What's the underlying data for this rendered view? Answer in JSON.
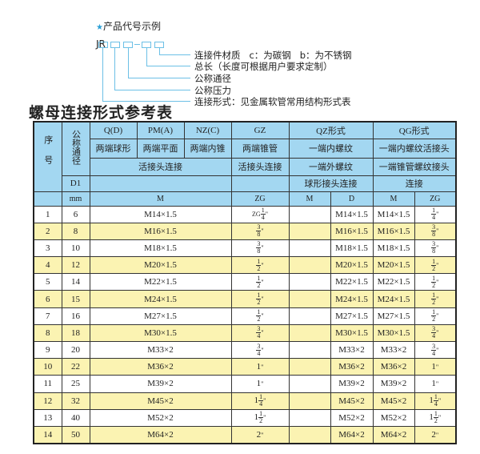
{
  "example": {
    "star_icon": "star-icon",
    "title": "产品代号示例",
    "prefix": "JR",
    "separator": "-",
    "labels": [
      "连接件材质   c：为碳钢   b：为不锈钢",
      "总长（长度可根据用户要求定制）",
      "公称通径",
      "公称压力",
      "连接形式：见金属软管常用结构形式表"
    ]
  },
  "table_title": "螺母连接形式参考表",
  "colors": {
    "header_bg": "#a3d7f1",
    "stripe_bg": "#fbf3b2",
    "accent": "#6cc0e6"
  },
  "header": {
    "seq": "序号",
    "dn": "公称通径",
    "qd": "Q(D)",
    "pm": "PM(A)",
    "nz": "NZ(C)",
    "gz": "GZ",
    "qz": "QZ形式",
    "qg": "QG形式",
    "qd_desc": "两端球形",
    "pm_desc": "两端平面",
    "nz_desc": "两端内锥",
    "gz_desc": "两端锥管",
    "qz_desc": "一端内螺纹",
    "qg_desc": "一端内螺纹活接头",
    "union": "活接头连接",
    "gz_union": "活接头连接",
    "qz_desc2": "一端外螺纹",
    "qg_desc2": "一端锥管螺纹接头",
    "d1": "D1",
    "qz_desc3": "球形接头连接",
    "qg_desc3": "连接",
    "mm": "mm",
    "m": "M",
    "zg": "ZG",
    "qz_m": "M",
    "qz_d": "D",
    "qg_m": "M",
    "qg_zg": "ZG"
  },
  "rows": [
    {
      "no": "1",
      "dn": "6",
      "m": "M14×1.5",
      "zg": {
        "pre": "ZG",
        "whole": "",
        "num": "1",
        "den": "4"
      },
      "qz_d": "M14×1.5",
      "qg_m": "M14×1.5",
      "qg_zg": {
        "whole": "",
        "num": "1",
        "den": "4"
      }
    },
    {
      "no": "2",
      "dn": "8",
      "m": "M16×1.5",
      "zg": {
        "whole": "",
        "num": "3",
        "den": "8"
      },
      "qz_d": "M16×1.5",
      "qg_m": "M16×1.5",
      "qg_zg": {
        "whole": "",
        "num": "3",
        "den": "8"
      }
    },
    {
      "no": "3",
      "dn": "10",
      "m": "M18×1.5",
      "zg": {
        "whole": "",
        "num": "3",
        "den": "8"
      },
      "qz_d": "M18×1.5",
      "qg_m": "M18×1.5",
      "qg_zg": {
        "whole": "",
        "num": "3",
        "den": "8"
      }
    },
    {
      "no": "4",
      "dn": "12",
      "m": "M20×1.5",
      "zg": {
        "whole": "",
        "num": "1",
        "den": "2"
      },
      "qz_d": "M20×1.5",
      "qg_m": "M20×1.5",
      "qg_zg": {
        "whole": "",
        "num": "1",
        "den": "2"
      }
    },
    {
      "no": "5",
      "dn": "14",
      "m": "M22×1.5",
      "zg": {
        "whole": "",
        "num": "1",
        "den": "2"
      },
      "qz_d": "M22×1.5",
      "qg_m": "M22×1.5",
      "qg_zg": {
        "whole": "",
        "num": "1",
        "den": "2"
      }
    },
    {
      "no": "6",
      "dn": "15",
      "m": "M24×1.5",
      "zg": {
        "whole": "",
        "num": "1",
        "den": "2"
      },
      "qz_d": "M24×1.5",
      "qg_m": "M24×1.5",
      "qg_zg": {
        "whole": "",
        "num": "1",
        "den": "2"
      }
    },
    {
      "no": "7",
      "dn": "16",
      "m": "M27×1.5",
      "zg": {
        "whole": "",
        "num": "1",
        "den": "2"
      },
      "qz_d": "M27×1.5",
      "qg_m": "M27×1.5",
      "qg_zg": {
        "whole": "",
        "num": "1",
        "den": "2"
      }
    },
    {
      "no": "8",
      "dn": "18",
      "m": "M30×1.5",
      "zg": {
        "whole": "",
        "num": "3",
        "den": "4"
      },
      "qz_d": "M30×1.5",
      "qg_m": "M30×1.5",
      "qg_zg": {
        "whole": "",
        "num": "3",
        "den": "4"
      }
    },
    {
      "no": "9",
      "dn": "20",
      "m": "M33×2",
      "zg": {
        "whole": "",
        "num": "3",
        "den": "4"
      },
      "qz_d": "M33×2",
      "qg_m": "M33×2",
      "qg_zg": {
        "whole": "",
        "num": "3",
        "den": "4"
      }
    },
    {
      "no": "10",
      "dn": "22",
      "m": "M36×2",
      "zg": {
        "whole": "1",
        "num": "",
        "den": ""
      },
      "qz_d": "M36×2",
      "qg_m": "M36×2",
      "qg_zg": {
        "whole": "1",
        "num": "",
        "den": ""
      }
    },
    {
      "no": "11",
      "dn": "25",
      "m": "M39×2",
      "zg": {
        "whole": "1",
        "num": "",
        "den": ""
      },
      "qz_d": "M39×2",
      "qg_m": "M39×2",
      "qg_zg": {
        "whole": "1",
        "num": "",
        "den": ""
      }
    },
    {
      "no": "12",
      "dn": "32",
      "m": "M45×2",
      "zg": {
        "whole": "1",
        "num": "1",
        "den": "4"
      },
      "qz_d": "M45×2",
      "qg_m": "M45×2",
      "qg_zg": {
        "whole": "1",
        "num": "1",
        "den": "4"
      }
    },
    {
      "no": "13",
      "dn": "40",
      "m": "M52×2",
      "zg": {
        "whole": "1",
        "num": "1",
        "den": "2"
      },
      "qz_d": "M52×2",
      "qg_m": "M52×2",
      "qg_zg": {
        "whole": "1",
        "num": "1",
        "den": "2"
      }
    },
    {
      "no": "14",
      "dn": "50",
      "m": "M64×2",
      "zg": {
        "whole": "2",
        "num": "",
        "den": ""
      },
      "qz_d": "M64×2",
      "qg_m": "M64×2",
      "qg_zg": {
        "whole": "2",
        "num": "",
        "den": ""
      }
    }
  ]
}
